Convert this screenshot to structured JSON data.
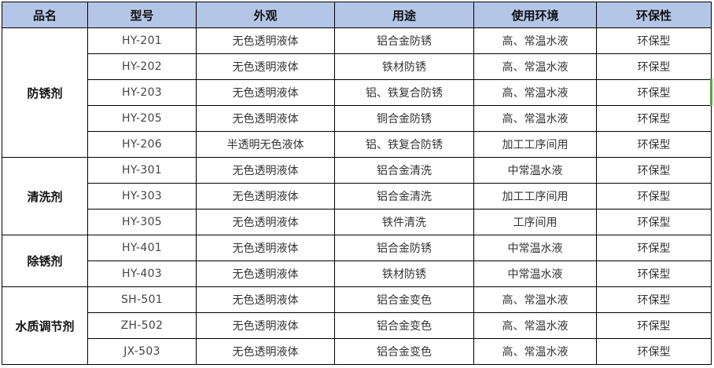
{
  "headers": [
    "品名",
    "型号",
    "外观",
    "用途",
    "使用环境",
    "环保性"
  ],
  "groups": [
    {
      "name": "防锈剂",
      "rows": [
        [
          "HY-201",
          "无色透明液体",
          "铝合金防锈",
          "高、常温水液",
          "环保型"
        ],
        [
          "HY-202",
          "无色透明液体",
          "铁材防锈",
          "高、常温水液",
          "环保型"
        ],
        [
          "HY-203",
          "无色透明液体",
          "铝、铁复合防锈",
          "高、常温水液",
          "环保型"
        ],
        [
          "HY-205",
          "无色透明液体",
          "铜合金防锈",
          "高、常温水液",
          "环保型"
        ],
        [
          "HY-206",
          "半透明无色液体",
          "铝、铁复合防锈",
          "加工工序间用",
          "环保型"
        ]
      ]
    },
    {
      "name": "清洗剂",
      "rows": [
        [
          "HY-301",
          "无色透明液体",
          "铝合金清洗",
          "中常温水液",
          "环保型"
        ],
        [
          "HY-303",
          "无色透明液体",
          "铝合金清洗",
          "加工工序间用",
          "环保型"
        ],
        [
          "HY-305",
          "无色透明液体",
          "铁件清洗",
          "工序间用",
          "环保型"
        ]
      ]
    },
    {
      "name": "除锈剂",
      "rows": [
        [
          "HY-401",
          "无色透明液体",
          "铝合金防锈",
          "中常温水液",
          "环保型"
        ],
        [
          "HY-403",
          "无色透明液体",
          "铁材防锈",
          "中常温水液",
          "环保型"
        ]
      ]
    },
    {
      "name": "水质调节剂",
      "rows": [
        [
          "SH-501",
          "无色透明液体",
          "铝合金变色",
          "高、常温水液",
          "环保型"
        ],
        [
          "ZH-502",
          "无色透明液体",
          "铝合金变色",
          "高、常温水液",
          "环保型"
        ],
        [
          "JX-503",
          "无色透明液体",
          "铝合金变色",
          "高、常温水液",
          "环保型"
        ]
      ]
    }
  ],
  "colors": {
    "header_bg": "#b4c6e7",
    "selection_mark": "#5aa33a"
  }
}
